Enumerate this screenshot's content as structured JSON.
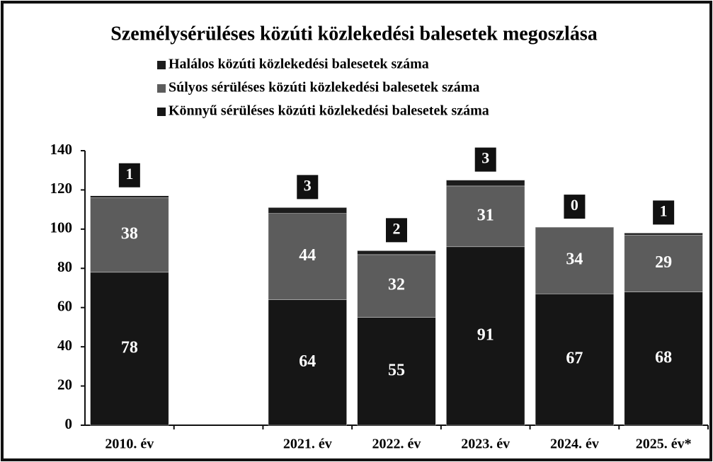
{
  "chart_data": {
    "type": "stacked_bar",
    "title": "Személysérüléses közúti közlekedési balesetek megoszlása",
    "categories": [
      "2010. év",
      null,
      "2021. év",
      "2022. év",
      "2023. év",
      "2024. év",
      "2025. év*"
    ],
    "series": [
      {
        "name": "Halálos közúti közlekedési balesetek száma",
        "color": "#1c1c1c",
        "values": [
          1,
          null,
          3,
          2,
          3,
          0,
          1
        ]
      },
      {
        "name": "Súlyos sérüléses közúti közlekedési balesetek száma",
        "color": "#5c5c5c",
        "values": [
          38,
          null,
          44,
          32,
          31,
          34,
          29
        ]
      },
      {
        "name": "Könnyű sérüléses közúti közlekedési balesetek száma",
        "color": "#161616",
        "values": [
          78,
          null,
          64,
          55,
          91,
          67,
          68
        ]
      }
    ],
    "ylim": [
      0,
      140
    ],
    "yticks": [
      0,
      20,
      40,
      60,
      80,
      100,
      120,
      140
    ],
    "grid": false
  }
}
